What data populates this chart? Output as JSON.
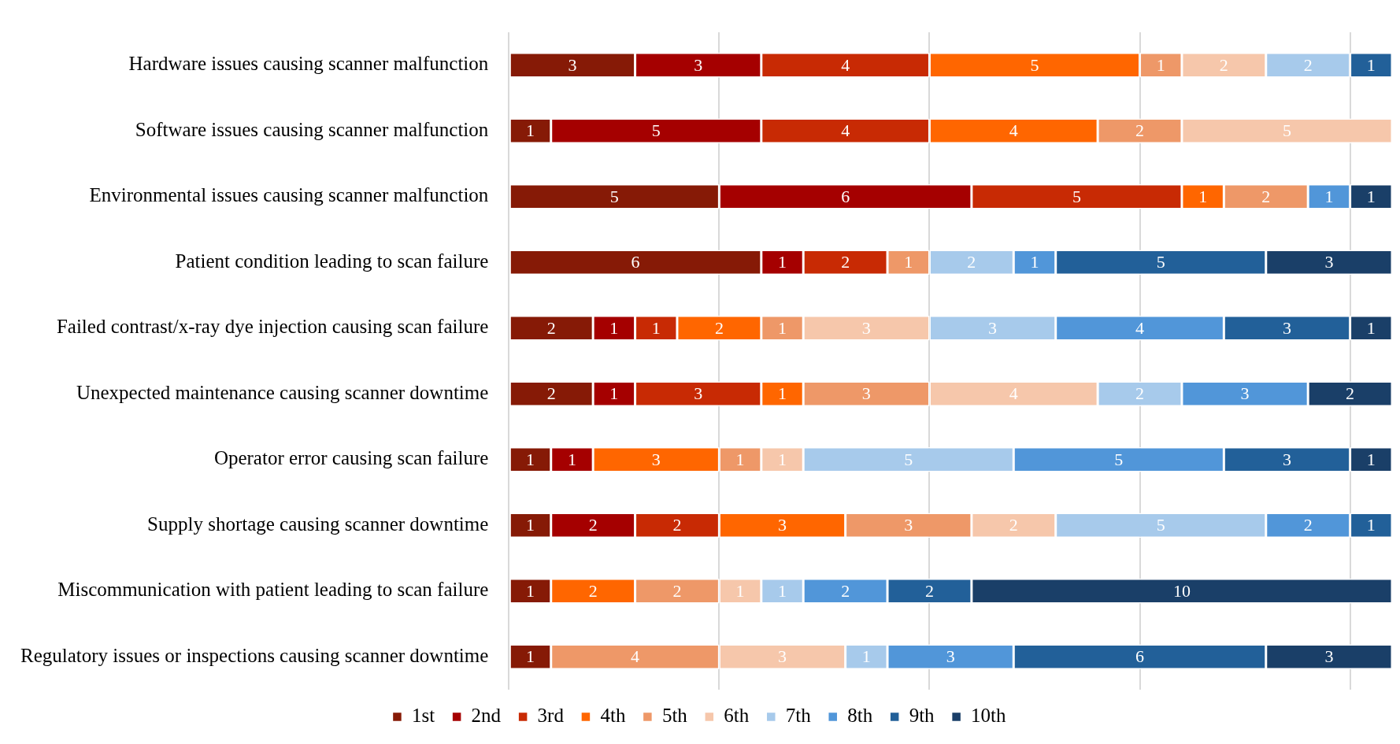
{
  "chart_data": {
    "type": "bar",
    "orientation": "horizontal",
    "stacked": true,
    "data_labels": true,
    "grid": "x",
    "legend": "bottom",
    "tick_labels": "y",
    "xlim": [
      0,
      21
    ],
    "xticks": [
      {
        "value": 0,
        "label": null
      },
      {
        "value": 5,
        "label": null
      },
      {
        "value": 10,
        "label": null
      },
      {
        "value": 15,
        "label": null
      },
      {
        "value": 20,
        "label": null
      }
    ],
    "categories": [
      "Hardware issues causing scanner malfunction",
      "Software issues causing scanner malfunction",
      "Environmental issues causing scanner malfunction",
      "Patient condition leading to scan failure",
      "Failed contrast/x-ray dye injection causing scan failure",
      "Unexpected maintenance causing scanner downtime",
      "Operator error causing scan failure",
      "Supply shortage causing scanner downtime",
      "Miscommunication with patient leading to scan failure",
      "Regulatory issues or inspections causing scanner downtime"
    ],
    "series": [
      {
        "name": "1st",
        "color": "#861a06",
        "values": [
          3,
          1,
          5,
          6,
          2,
          2,
          1,
          1,
          1,
          1
        ]
      },
      {
        "name": "2nd",
        "color": "#a50000",
        "values": [
          3,
          5,
          6,
          1,
          1,
          1,
          1,
          2,
          null,
          null
        ]
      },
      {
        "name": "3rd",
        "color": "#c82a04",
        "values": [
          4,
          4,
          5,
          2,
          1,
          3,
          null,
          2,
          null,
          null
        ]
      },
      {
        "name": "4th",
        "color": "#ff6600",
        "values": [
          5,
          4,
          1,
          null,
          2,
          1,
          3,
          3,
          2,
          null
        ]
      },
      {
        "name": "5th",
        "color": "#ee9868",
        "values": [
          1,
          2,
          2,
          1,
          1,
          3,
          1,
          3,
          2,
          4
        ]
      },
      {
        "name": "6th",
        "color": "#f6c7ab",
        "values": [
          2,
          5,
          null,
          null,
          3,
          4,
          1,
          2,
          1,
          3
        ]
      },
      {
        "name": "7th",
        "color": "#a7caeb",
        "values": [
          2,
          null,
          null,
          2,
          3,
          2,
          5,
          5,
          1,
          1
        ]
      },
      {
        "name": "8th",
        "color": "#5196d9",
        "values": [
          null,
          null,
          1,
          1,
          4,
          3,
          5,
          2,
          2,
          3
        ]
      },
      {
        "name": "9th",
        "color": "#226099",
        "values": [
          1,
          null,
          null,
          5,
          3,
          null,
          3,
          1,
          2,
          6
        ]
      },
      {
        "name": "10th",
        "color": "#1a3f68",
        "values": [
          null,
          null,
          1,
          3,
          1,
          2,
          1,
          null,
          10,
          3
        ]
      }
    ]
  }
}
